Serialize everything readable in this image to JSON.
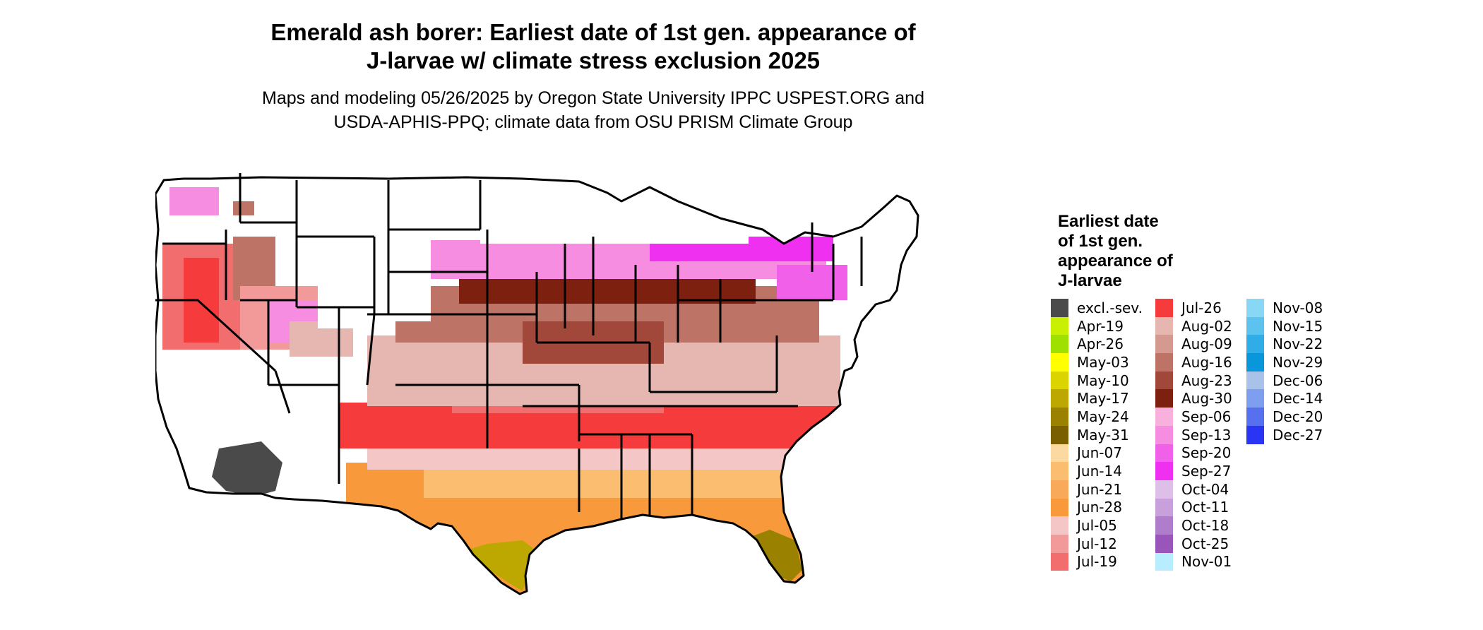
{
  "title_line1": "Emerald ash borer: Earliest date of 1st gen. appearance of",
  "title_line2": "J-larvae w/ climate stress exclusion 2025",
  "subtitle_line1": "Maps and modeling 05/26/2025 by Oregon State University IPPC USPEST.ORG and",
  "subtitle_line2": "USDA-APHIS-PPQ; climate data from OSU PRISM Climate Group",
  "legend": {
    "title_lines": [
      "Earliest date",
      "of 1st gen.",
      "appearance of",
      "J-larvae"
    ],
    "columns": [
      [
        {
          "label": "excl.-sev.",
          "color": "#4a4a4a"
        },
        {
          "label": "Apr-19",
          "color": "#c8f000"
        },
        {
          "label": "Apr-26",
          "color": "#9fe000"
        },
        {
          "label": "May-03",
          "color": "#ffff00"
        },
        {
          "label": "May-10",
          "color": "#dcd400"
        },
        {
          "label": "May-17",
          "color": "#bca800"
        },
        {
          "label": "May-24",
          "color": "#9a8200"
        },
        {
          "label": "May-31",
          "color": "#7a5f00"
        },
        {
          "label": "Jun-07",
          "color": "#fcd9a1"
        },
        {
          "label": "Jun-14",
          "color": "#fbbd70"
        },
        {
          "label": "Jun-21",
          "color": "#f9a95a"
        },
        {
          "label": "Jun-28",
          "color": "#f89a3c"
        },
        {
          "label": "Jul-05",
          "color": "#f5c6c6"
        },
        {
          "label": "Jul-12",
          "color": "#f29a9a"
        },
        {
          "label": "Jul-19",
          "color": "#f26d6d"
        }
      ],
      [
        {
          "label": "Jul-26",
          "color": "#f53b3b"
        },
        {
          "label": "Aug-02",
          "color": "#e5b7b0"
        },
        {
          "label": "Aug-09",
          "color": "#d49a90"
        },
        {
          "label": "Aug-16",
          "color": "#bd7466"
        },
        {
          "label": "Aug-23",
          "color": "#a1483a"
        },
        {
          "label": "Aug-30",
          "color": "#7e2010"
        },
        {
          "label": "Sep-06",
          "color": "#f8b0dc"
        },
        {
          "label": "Sep-13",
          "color": "#f78de0"
        },
        {
          "label": "Sep-20",
          "color": "#f060e8"
        },
        {
          "label": "Sep-27",
          "color": "#f030f0"
        },
        {
          "label": "Oct-04",
          "color": "#ddbfe8"
        },
        {
          "label": "Oct-11",
          "color": "#c8a0dc"
        },
        {
          "label": "Oct-18",
          "color": "#b07dcc"
        },
        {
          "label": "Oct-25",
          "color": "#9a55bb"
        },
        {
          "label": "Nov-01",
          "color": "#b8ecff"
        }
      ],
      [
        {
          "label": "Nov-08",
          "color": "#88d8f5"
        },
        {
          "label": "Nov-15",
          "color": "#5cc2ee"
        },
        {
          "label": "Nov-22",
          "color": "#30ace6"
        },
        {
          "label": "Nov-29",
          "color": "#0a96da"
        },
        {
          "label": "Dec-06",
          "color": "#a8c2ea"
        },
        {
          "label": "Dec-14",
          "color": "#7e9ff0"
        },
        {
          "label": "Dec-20",
          "color": "#5770f0"
        },
        {
          "label": "Dec-27",
          "color": "#2a34f5"
        }
      ]
    ]
  },
  "map": {
    "exclusion_color": "#4a4a4a",
    "border_color": "#000000"
  }
}
